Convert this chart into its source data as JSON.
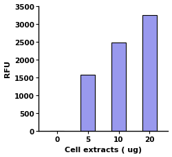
{
  "categories": [
    "0",
    "5",
    "10",
    "20"
  ],
  "values": [
    0,
    1580,
    2480,
    3250
  ],
  "bar_color": "#9999ee",
  "bar_edge_color": "#000000",
  "xlabel": "Cell extracts ( ug)",
  "ylabel": "RFU",
  "ylim": [
    0,
    3500
  ],
  "yticks": [
    0,
    500,
    1000,
    1500,
    2000,
    2500,
    3000,
    3500
  ],
  "xlabel_fontsize": 8,
  "ylabel_fontsize": 8,
  "tick_fontsize": 7.5,
  "bar_width": 0.45,
  "background_color": "#ffffff",
  "spine_color": "#000000",
  "xlabel_bold": true,
  "ylabel_bold": true
}
